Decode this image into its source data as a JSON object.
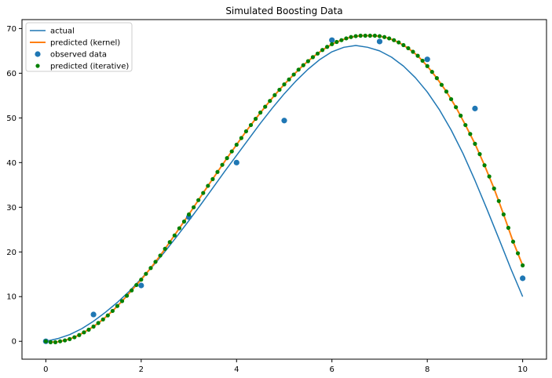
{
  "chart_data": {
    "type": "line",
    "title": "Simulated Boosting Data",
    "xlabel": "",
    "ylabel": "",
    "xlim": [
      -0.5,
      10.5
    ],
    "ylim": [
      -4,
      72
    ],
    "xticks": [
      0,
      2,
      4,
      6,
      8,
      10
    ],
    "yticks": [
      0,
      10,
      20,
      30,
      40,
      50,
      60,
      70
    ],
    "grid": false,
    "legend_position": "top-left",
    "series": [
      {
        "name": "actual",
        "kind": "line",
        "color": "#1f77b4",
        "x": [
          0,
          0.25,
          0.5,
          0.75,
          1,
          1.25,
          1.5,
          1.75,
          2,
          2.25,
          2.5,
          2.75,
          3,
          3.25,
          3.5,
          3.75,
          4,
          4.25,
          4.5,
          4.75,
          5,
          5.25,
          5.5,
          5.75,
          6,
          6.25,
          6.5,
          6.75,
          7,
          7.25,
          7.5,
          7.75,
          8,
          8.25,
          8.5,
          8.75,
          9,
          9.25,
          9.5,
          9.75,
          10
        ],
        "y": [
          0,
          0.6,
          1.5,
          2.8,
          4.5,
          6.5,
          8.7,
          11.2,
          14,
          16.9,
          20.1,
          23.5,
          27,
          30.6,
          34.3,
          38,
          41.6,
          45.2,
          48.8,
          52.2,
          55.4,
          58.3,
          60.9,
          63.1,
          64.8,
          65.8,
          66.2,
          65.8,
          65,
          63.6,
          61.6,
          59,
          55.8,
          51.9,
          47.3,
          42,
          36,
          29.6,
          23,
          16.3,
          10
        ]
      },
      {
        "name": "predicted (kernel)",
        "kind": "line",
        "color": "#ff7f0e",
        "x": [
          0,
          0.2,
          0.4,
          0.6,
          0.8,
          1,
          1.2,
          1.4,
          1.6,
          1.8,
          2,
          2.2,
          2.4,
          2.6,
          2.8,
          3,
          3.2,
          3.4,
          3.6,
          3.8,
          4,
          4.2,
          4.4,
          4.6,
          4.8,
          5,
          5.2,
          5.4,
          5.6,
          5.8,
          6,
          6.2,
          6.4,
          6.6,
          6.8,
          7,
          7.2,
          7.4,
          7.6,
          7.8,
          8,
          8.2,
          8.4,
          8.6,
          8.8,
          9,
          9.2,
          9.4,
          9.6,
          9.8,
          10
        ],
        "y": [
          0,
          -0.2,
          0.2,
          0.9,
          2,
          3.3,
          4.9,
          6.8,
          9,
          11.4,
          13.8,
          16.4,
          19.2,
          22.2,
          25.3,
          28.4,
          31.6,
          34.8,
          37.9,
          41,
          44,
          47,
          49.8,
          52.5,
          55.1,
          57.5,
          59.7,
          61.8,
          63.6,
          65.2,
          66.5,
          67.4,
          68.1,
          68.4,
          68.4,
          68.3,
          67.8,
          66.9,
          65.6,
          63.9,
          61.6,
          58.9,
          55.9,
          52.4,
          48.4,
          44.2,
          39.4,
          34.2,
          28.4,
          22.3,
          17
        ]
      },
      {
        "name": "observed data",
        "kind": "scatter",
        "color": "#1f77b4",
        "x": [
          0,
          1,
          2,
          3,
          4,
          5,
          6,
          7,
          8,
          9,
          10
        ],
        "y": [
          0,
          6,
          12.5,
          27.8,
          40,
          49.4,
          67.4,
          67.1,
          63.1,
          52.1,
          14.1
        ]
      },
      {
        "name": "predicted (iterative)",
        "kind": "scatter",
        "color": "#008000",
        "x": [
          0,
          0.1,
          0.2,
          0.3,
          0.4,
          0.5,
          0.6,
          0.7,
          0.8,
          0.9,
          1,
          1.1,
          1.2,
          1.3,
          1.4,
          1.5,
          1.6,
          1.7,
          1.8,
          1.9,
          2,
          2.1,
          2.2,
          2.3,
          2.4,
          2.5,
          2.6,
          2.7,
          2.8,
          2.9,
          3,
          3.1,
          3.2,
          3.3,
          3.4,
          3.5,
          3.6,
          3.7,
          3.8,
          3.9,
          4,
          4.1,
          4.2,
          4.3,
          4.4,
          4.5,
          4.6,
          4.7,
          4.8,
          4.9,
          5,
          5.1,
          5.2,
          5.3,
          5.4,
          5.5,
          5.6,
          5.7,
          5.8,
          5.9,
          6,
          6.1,
          6.2,
          6.3,
          6.4,
          6.5,
          6.6,
          6.7,
          6.8,
          6.9,
          7,
          7.1,
          7.2,
          7.3,
          7.4,
          7.5,
          7.6,
          7.7,
          7.8,
          7.9,
          8,
          8.1,
          8.2,
          8.3,
          8.4,
          8.5,
          8.6,
          8.7,
          8.8,
          8.9,
          9,
          9.1,
          9.2,
          9.3,
          9.4,
          9.5,
          9.6,
          9.7,
          9.8,
          9.9,
          10
        ],
        "y": [
          0,
          -0.2,
          -0.2,
          0,
          0.2,
          0.5,
          0.9,
          1.4,
          2,
          2.6,
          3.3,
          4.1,
          4.9,
          5.8,
          6.8,
          7.9,
          9,
          10.2,
          11.4,
          12.6,
          13.8,
          15.1,
          16.4,
          17.8,
          19.2,
          20.7,
          22.2,
          23.7,
          25.3,
          26.8,
          28.4,
          30,
          31.6,
          33.2,
          34.8,
          36.3,
          37.9,
          39.5,
          41,
          42.5,
          44,
          45.5,
          47,
          48.4,
          49.8,
          51.2,
          52.5,
          53.8,
          55.1,
          56.3,
          57.5,
          58.6,
          59.7,
          60.8,
          61.8,
          62.7,
          63.6,
          64.4,
          65.2,
          65.9,
          66.5,
          67,
          67.4,
          67.8,
          68.1,
          68.3,
          68.4,
          68.4,
          68.4,
          68.4,
          68.3,
          68.1,
          67.8,
          67.4,
          66.9,
          66.3,
          65.6,
          64.8,
          63.9,
          62.8,
          61.6,
          60.3,
          58.9,
          57.4,
          55.9,
          54.2,
          52.4,
          50.5,
          48.4,
          46.4,
          44.2,
          41.9,
          39.4,
          36.9,
          34.2,
          31.4,
          28.4,
          25.4,
          22.3,
          19.7,
          17
        ]
      }
    ]
  }
}
